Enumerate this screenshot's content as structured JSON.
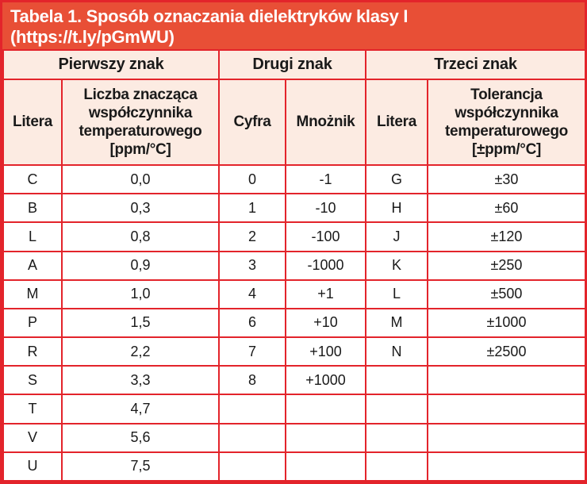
{
  "colors": {
    "title_background": "#e84f36",
    "grid_and_frame_red": "#e3242b",
    "header_background": "#fcebe2",
    "title_text": "#ffffff",
    "body_text": "#1a1a1a",
    "row_background": "#ffffff"
  },
  "title": {
    "line1": "Tabela 1. Sposób oznaczania dielektryków klasy I",
    "line2": "(https://t.ly/pGmWU)"
  },
  "table": {
    "group_headers": [
      "Pierwszy znak",
      "Drugi znak",
      "Trzeci znak"
    ],
    "column_headers": [
      "Litera",
      "Liczba znacząca współczynnika temperaturowego [ppm/°C]",
      "Cyfra",
      "Mnożnik",
      "Litera",
      "Tolerancja współczynnika temperaturowego [±ppm/°C]"
    ],
    "rows": [
      [
        "C",
        "0,0",
        "0",
        "-1",
        "G",
        "±30"
      ],
      [
        "B",
        "0,3",
        "1",
        "-10",
        "H",
        "±60"
      ],
      [
        "L",
        "0,8",
        "2",
        "-100",
        "J",
        "±120"
      ],
      [
        "A",
        "0,9",
        "3",
        "-1000",
        "K",
        "±250"
      ],
      [
        "M",
        "1,0",
        "4",
        "+1",
        "L",
        "±500"
      ],
      [
        "P",
        "1,5",
        "6",
        "+10",
        "M",
        "±1000"
      ],
      [
        "R",
        "2,2",
        "7",
        "+100",
        "N",
        "±2500"
      ],
      [
        "S",
        "3,3",
        "8",
        "+1000",
        "",
        ""
      ],
      [
        "T",
        "4,7",
        "",
        "",
        "",
        ""
      ],
      [
        "V",
        "5,6",
        "",
        "",
        "",
        ""
      ],
      [
        "U",
        "7,5",
        "",
        "",
        "",
        ""
      ]
    ]
  }
}
